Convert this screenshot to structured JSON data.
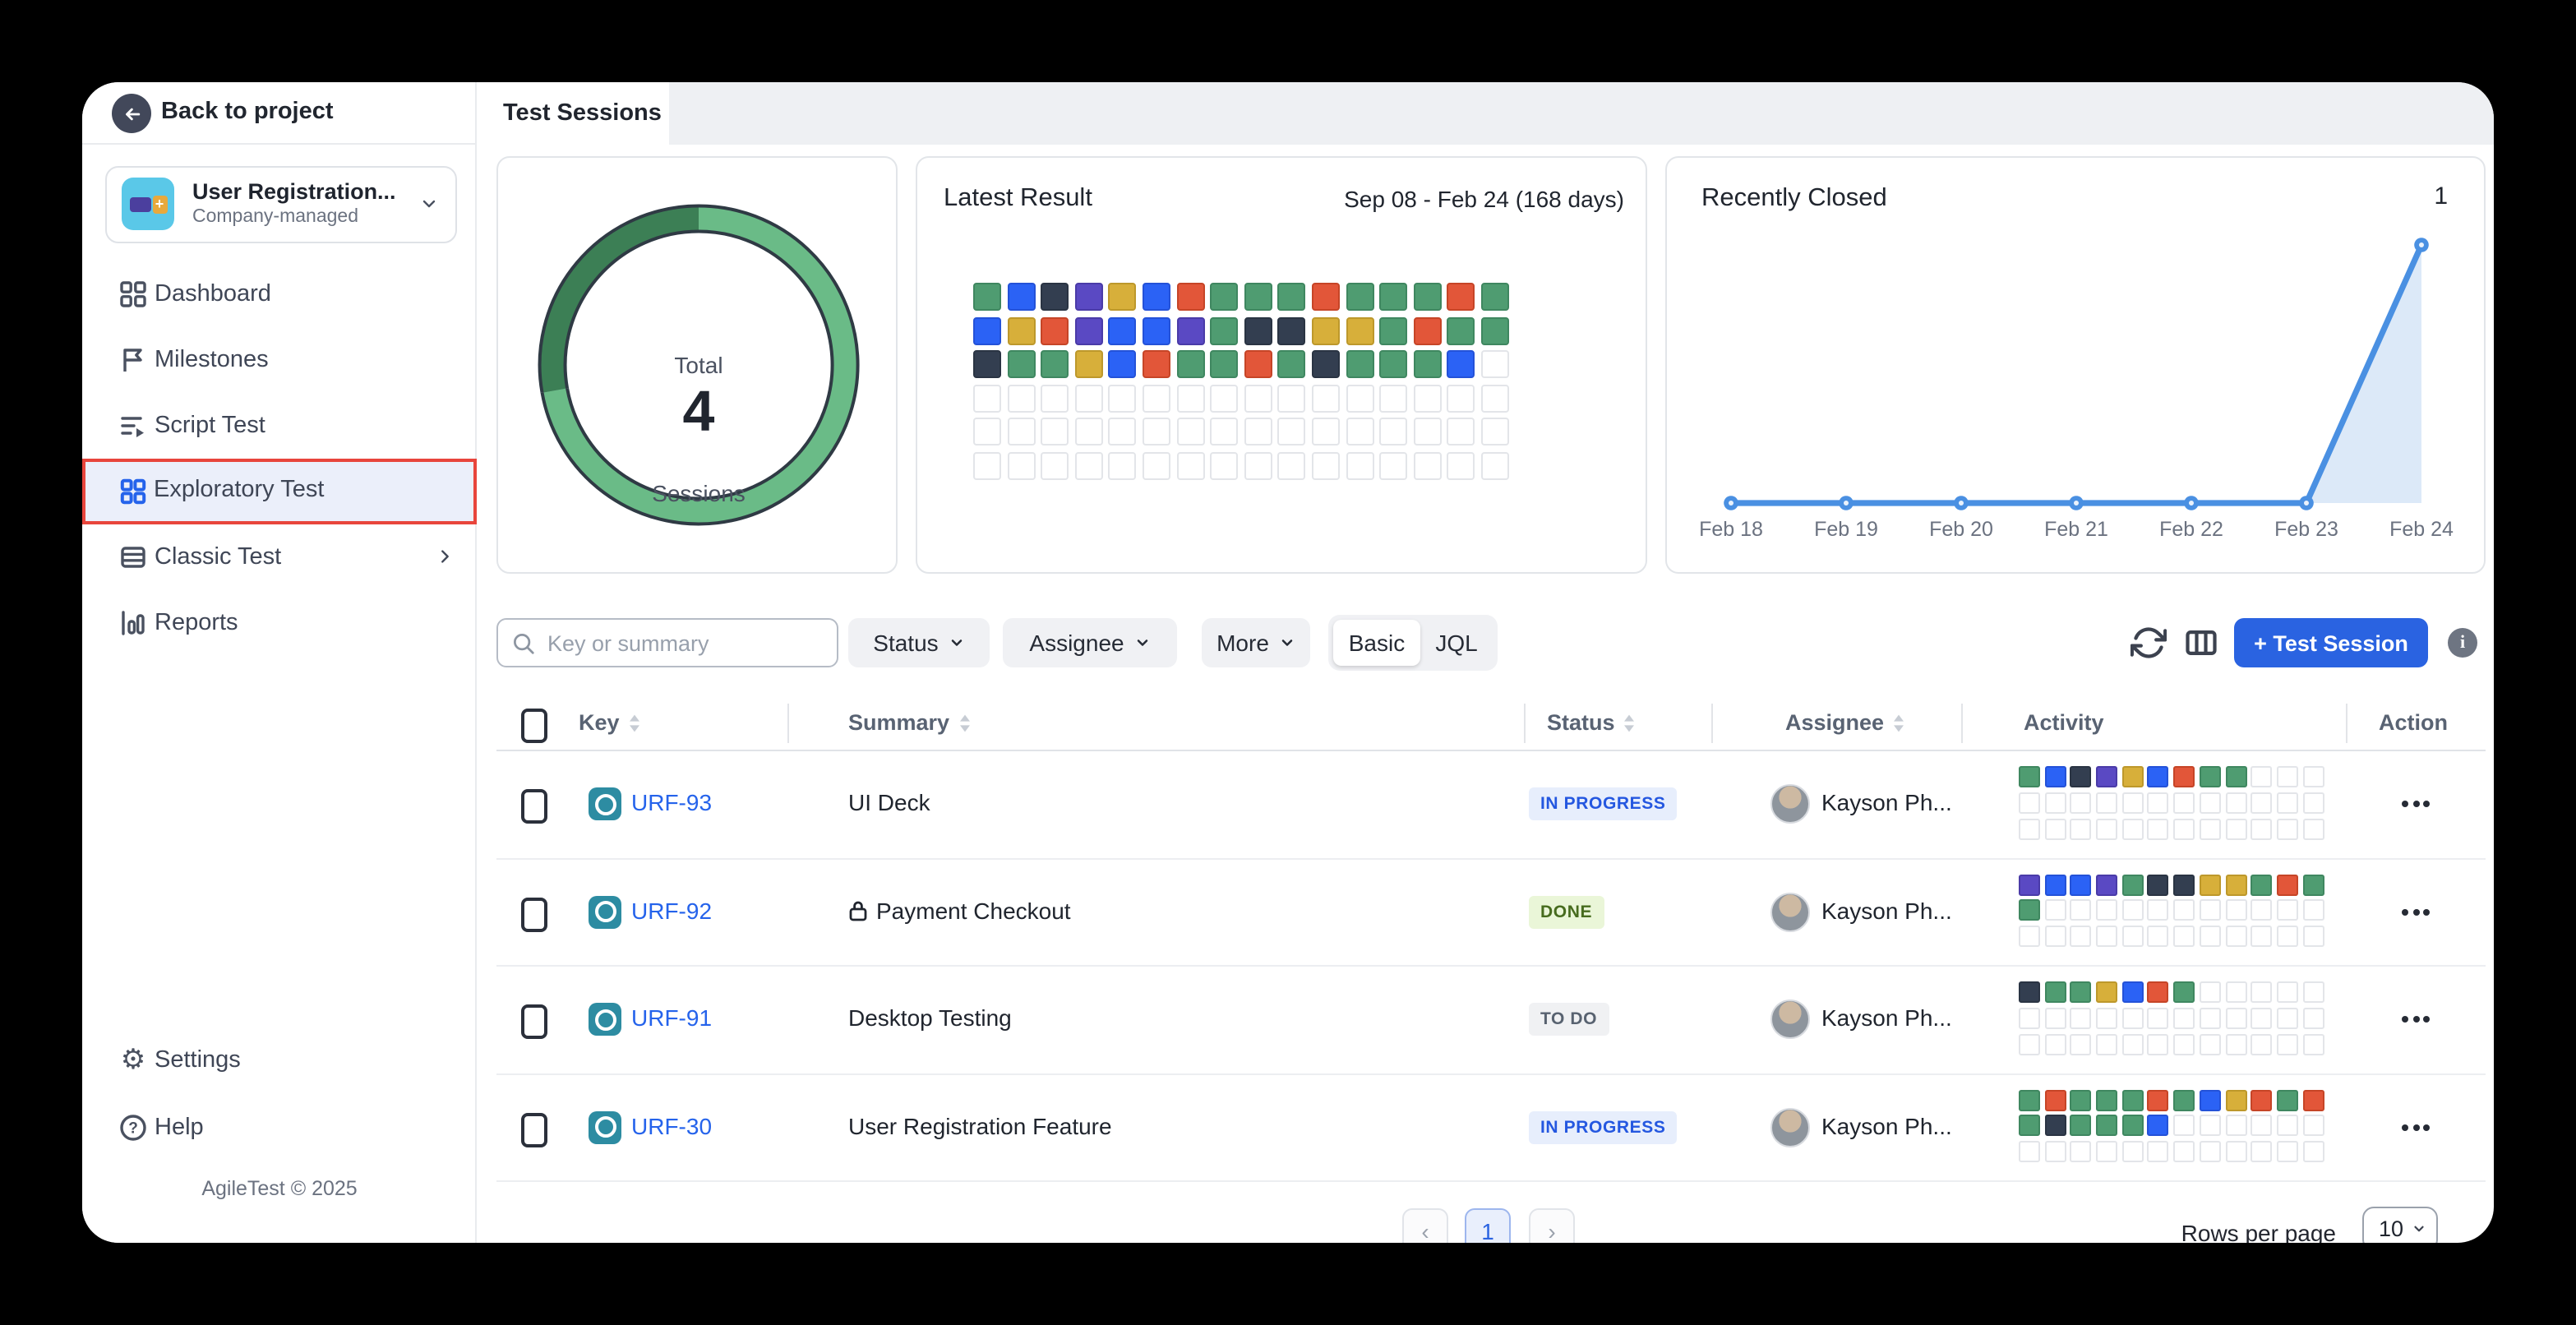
{
  "sidebar": {
    "back": "Back to project",
    "project": {
      "name": "User Registration...",
      "subtitle": "Company-managed",
      "plus": "+"
    },
    "nav": [
      {
        "label": "Dashboard"
      },
      {
        "label": "Milestones"
      },
      {
        "label": "Script Test"
      },
      {
        "label": "Exploratory Test"
      },
      {
        "label": "Classic Test"
      },
      {
        "label": "Reports"
      }
    ],
    "bottom": [
      {
        "label": "Settings"
      },
      {
        "label": "Help"
      }
    ],
    "copyright": "AgileTest © 2025"
  },
  "header": {
    "active_tab": "Test Sessions"
  },
  "cards": {
    "total": {
      "top": "Total",
      "value": "4",
      "bottom": "Sessions",
      "chart_data": {
        "type": "pie",
        "series": [
          {
            "name": "closed",
            "value": 1
          },
          {
            "name": "open",
            "value": 3
          }
        ]
      },
      "colors": {
        "dark": "#3c7f55",
        "light": "#6abb87",
        "outline": "#2f3a44"
      }
    },
    "latest": {
      "title": "Latest Result",
      "range": "Sep 08  -  Feb 24  (168 days)",
      "grid": [
        [
          "g",
          "b",
          "d",
          "p",
          "y",
          "b",
          "r",
          "g",
          "g",
          "g",
          "r",
          "g",
          "g",
          "g",
          "r",
          "g"
        ],
        [
          "b",
          "y",
          "r",
          "p",
          "b",
          "b",
          "p",
          "g",
          "d",
          "d",
          "y",
          "y",
          "g",
          "r",
          "g",
          "g"
        ],
        [
          "d",
          "g",
          "g",
          "y",
          "b",
          "r",
          "g",
          "g",
          "r",
          "g",
          "d",
          "g",
          "g",
          "g",
          "b",
          "e"
        ],
        [
          "e",
          "e",
          "e",
          "e",
          "e",
          "e",
          "e",
          "e",
          "e",
          "e",
          "e",
          "e",
          "e",
          "e",
          "e",
          "e"
        ],
        [
          "e",
          "e",
          "e",
          "e",
          "e",
          "e",
          "e",
          "e",
          "e",
          "e",
          "e",
          "e",
          "e",
          "e",
          "e",
          "e"
        ],
        [
          "e",
          "e",
          "e",
          "e",
          "e",
          "e",
          "e",
          "e",
          "e",
          "e",
          "e",
          "e",
          "e",
          "e",
          "e",
          "e"
        ]
      ]
    },
    "closed": {
      "title": "Recently Closed",
      "count": "1",
      "chart_data": {
        "type": "line",
        "x": [
          "Feb 18",
          "Feb 19",
          "Feb 20",
          "Feb 21",
          "Feb 22",
          "Feb 23",
          "Feb 24"
        ],
        "values": [
          0,
          0,
          0,
          0,
          0,
          0,
          1
        ],
        "ylim": [
          0,
          1
        ]
      },
      "line_color": "#4a90e2",
      "fill_color": "#dce9f8"
    }
  },
  "filters": {
    "search_placeholder": "Key or summary",
    "status": "Status",
    "assignee": "Assignee",
    "more": "More",
    "mode_basic": "Basic",
    "mode_jql": "JQL",
    "add_button": "+ Test Session"
  },
  "table": {
    "columns": [
      "Key",
      "Summary",
      "Status",
      "Assignee",
      "Activity",
      "Action"
    ],
    "rows": [
      {
        "key": "URF-93",
        "summary": "UI Deck",
        "locked": false,
        "status": "IN PROGRESS",
        "status_kind": "inprogress",
        "assignee": "Kayson Ph...",
        "activity": [
          [
            "g",
            "b",
            "d",
            "p",
            "y",
            "b",
            "r",
            "g",
            "g",
            "e",
            "e",
            "e"
          ],
          [
            "e",
            "e",
            "e",
            "e",
            "e",
            "e",
            "e",
            "e",
            "e",
            "e",
            "e",
            "e"
          ],
          [
            "e",
            "e",
            "e",
            "e",
            "e",
            "e",
            "e",
            "e",
            "e",
            "e",
            "e",
            "e"
          ]
        ]
      },
      {
        "key": "URF-92",
        "summary": "Payment Checkout",
        "locked": true,
        "status": "DONE",
        "status_kind": "done",
        "assignee": "Kayson Ph...",
        "activity": [
          [
            "p",
            "b",
            "b",
            "p",
            "g",
            "d",
            "d",
            "y",
            "y",
            "g",
            "r",
            "g"
          ],
          [
            "g",
            "e",
            "e",
            "e",
            "e",
            "e",
            "e",
            "e",
            "e",
            "e",
            "e",
            "e"
          ],
          [
            "e",
            "e",
            "e",
            "e",
            "e",
            "e",
            "e",
            "e",
            "e",
            "e",
            "e",
            "e"
          ]
        ]
      },
      {
        "key": "URF-91",
        "summary": "Desktop Testing",
        "locked": false,
        "status": "TO DO",
        "status_kind": "todo",
        "assignee": "Kayson Ph...",
        "activity": [
          [
            "d",
            "g",
            "g",
            "y",
            "b",
            "r",
            "g",
            "e",
            "e",
            "e",
            "e",
            "e"
          ],
          [
            "e",
            "e",
            "e",
            "e",
            "e",
            "e",
            "e",
            "e",
            "e",
            "e",
            "e",
            "e"
          ],
          [
            "e",
            "e",
            "e",
            "e",
            "e",
            "e",
            "e",
            "e",
            "e",
            "e",
            "e",
            "e"
          ]
        ]
      },
      {
        "key": "URF-30",
        "summary": "User Registration Feature",
        "locked": false,
        "status": "IN PROGRESS",
        "status_kind": "inprogress",
        "assignee": "Kayson Ph...",
        "activity": [
          [
            "g",
            "r",
            "g",
            "g",
            "g",
            "r",
            "g",
            "b",
            "y",
            "r",
            "g",
            "r"
          ],
          [
            "g",
            "d",
            "g",
            "g",
            "g",
            "b",
            "e",
            "e",
            "e",
            "e",
            "e",
            "e"
          ],
          [
            "e",
            "e",
            "e",
            "e",
            "e",
            "e",
            "e",
            "e",
            "e",
            "e",
            "e",
            "e"
          ]
        ]
      }
    ]
  },
  "pagination": {
    "prev": "‹",
    "page": "1",
    "next": "›",
    "rows_per_page_label": "Rows per page",
    "rows_per_page": "10"
  },
  "cell_colors": {
    "g": {
      "f": "#4f9c71",
      "b": "#3f8760"
    },
    "b": {
      "f": "#2b62f5",
      "b": "#2452d8"
    },
    "d": {
      "f": "#333e50",
      "b": "#2a3443"
    },
    "p": {
      "f": "#5a49c3",
      "b": "#4a3ba8"
    },
    "y": {
      "f": "#d7af3a",
      "b": "#bd982b"
    },
    "r": {
      "f": "#e25639",
      "b": "#c64527"
    },
    "e": {
      "f": "#ffffff",
      "b": "#e3e5e9"
    }
  }
}
